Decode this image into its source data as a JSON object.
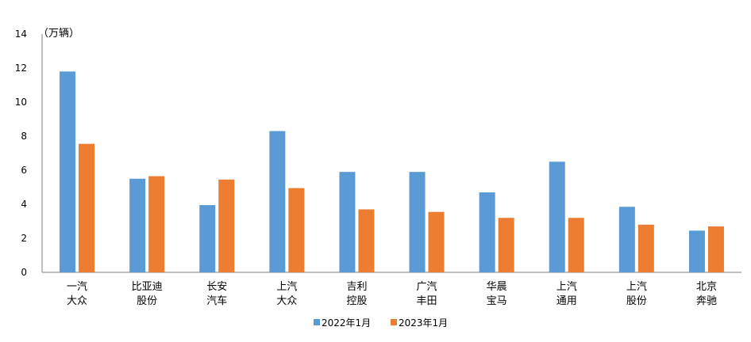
{
  "chart_data": {
    "type": "bar",
    "unit": "（万辆）",
    "categories": [
      [
        "一汽",
        "大众"
      ],
      [
        "比亚迪",
        "股份"
      ],
      [
        "长安",
        "汽车"
      ],
      [
        "上汽",
        "大众"
      ],
      [
        "吉利",
        "控股"
      ],
      [
        "广汽",
        "丰田"
      ],
      [
        "华晨",
        "宝马"
      ],
      [
        "上汽",
        "通用"
      ],
      [
        "上汽",
        "股份"
      ],
      [
        "北京",
        "奔驰"
      ]
    ],
    "series": [
      {
        "name": "2022年1月",
        "color": "#5B9BD5",
        "values": [
          11.8,
          5.5,
          3.95,
          8.3,
          5.9,
          5.9,
          4.7,
          6.5,
          3.85,
          2.45
        ]
      },
      {
        "name": "2023年1月",
        "color": "#ED7D31",
        "values": [
          7.55,
          5.65,
          5.45,
          4.95,
          3.7,
          3.55,
          3.2,
          3.2,
          2.8,
          2.7
        ]
      }
    ],
    "ylim": [
      0,
      14
    ],
    "yticks": [
      0,
      2,
      4,
      6,
      8,
      10,
      12,
      14
    ],
    "grid": false,
    "legend_position": "bottom"
  }
}
